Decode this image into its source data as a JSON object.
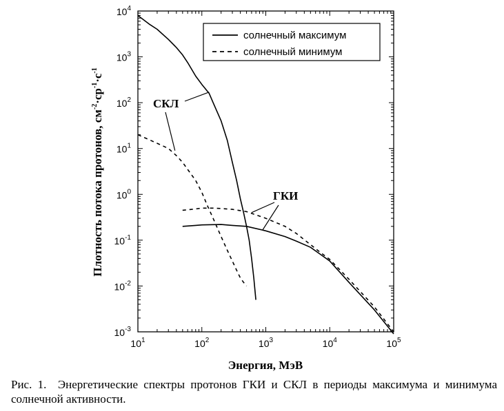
{
  "chart_data": {
    "type": "line",
    "xscale": "log",
    "yscale": "log",
    "xlim": [
      10,
      100000
    ],
    "ylim": [
      0.001,
      10000
    ],
    "xlabel": "Энергия, МэВ",
    "ylabel_main": "Плотность потока протонов, см",
    "ylabel_exp1": "-2",
    "ylabel_mid1": "·ср",
    "ylabel_exp2": "-1",
    "ylabel_mid2": "·с",
    "ylabel_exp3": "-1",
    "x_ticks": [
      {
        "value": 10,
        "base": "10",
        "exp": "1"
      },
      {
        "value": 100,
        "base": "10",
        "exp": "2"
      },
      {
        "value": 1000,
        "base": "10",
        "exp": "3"
      },
      {
        "value": 10000,
        "base": "10",
        "exp": "4"
      },
      {
        "value": 100000,
        "base": "10",
        "exp": "5"
      }
    ],
    "y_ticks": [
      {
        "value": 0.001,
        "base": "10",
        "exp": "-3"
      },
      {
        "value": 0.01,
        "base": "10",
        "exp": "-2"
      },
      {
        "value": 0.1,
        "base": "10",
        "exp": "-1"
      },
      {
        "value": 1,
        "base": "10",
        "exp": "0"
      },
      {
        "value": 10,
        "base": "10",
        "exp": "1"
      },
      {
        "value": 100,
        "base": "10",
        "exp": "2"
      },
      {
        "value": 1000,
        "base": "10",
        "exp": "3"
      },
      {
        "value": 10000,
        "base": "10",
        "exp": "4"
      }
    ],
    "legend_position": "top-right",
    "legend": [
      {
        "label": "солнечный максимум",
        "style": "solid"
      },
      {
        "label": "солнечный минимум",
        "style": "dashed"
      }
    ],
    "series": [
      {
        "group": "СКЛ",
        "legend": "солнечный максимум",
        "style": "solid",
        "x": [
          10,
          15,
          20,
          30,
          40,
          50,
          60,
          80,
          100,
          130,
          150,
          200,
          250,
          300,
          350,
          400,
          450,
          500,
          550,
          600,
          650,
          700
        ],
        "y": [
          8000,
          5200,
          4000,
          2400,
          1600,
          1100,
          750,
          380,
          250,
          160,
          100,
          40,
          15,
          5,
          2,
          0.8,
          0.4,
          0.2,
          0.1,
          0.04,
          0.015,
          0.005
        ]
      },
      {
        "group": "СКЛ",
        "legend": "солнечный минимум",
        "style": "dashed",
        "x": [
          10,
          20,
          30,
          40,
          50,
          60,
          80,
          100,
          120,
          150,
          200,
          250,
          300,
          350,
          400,
          450,
          500
        ],
        "y": [
          20,
          13,
          10,
          7,
          5,
          3.5,
          2,
          1.1,
          0.6,
          0.3,
          0.12,
          0.06,
          0.035,
          0.022,
          0.015,
          0.012,
          0.01
        ]
      },
      {
        "group": "ГКИ",
        "legend": "солнечный максимум",
        "style": "solid",
        "x": [
          50,
          80,
          100,
          200,
          300,
          500,
          1000,
          2000,
          3000,
          5000,
          7000,
          10000,
          20000,
          50000,
          100000
        ],
        "y": [
          0.2,
          0.21,
          0.215,
          0.22,
          0.21,
          0.2,
          0.16,
          0.12,
          0.095,
          0.07,
          0.05,
          0.035,
          0.012,
          0.003,
          0.0009
        ]
      },
      {
        "group": "ГКИ",
        "legend": "солнечный минимум",
        "style": "dashed",
        "x": [
          50,
          80,
          100,
          150,
          200,
          300,
          500,
          1000,
          2000,
          3000,
          5000,
          7000,
          10000,
          20000,
          50000,
          100000
        ],
        "y": [
          0.45,
          0.48,
          0.5,
          0.5,
          0.49,
          0.47,
          0.42,
          0.3,
          0.2,
          0.14,
          0.08,
          0.055,
          0.038,
          0.014,
          0.0035,
          0.001
        ]
      }
    ],
    "annotations": [
      {
        "text": "СКЛ"
      },
      {
        "text": "ГКИ"
      }
    ]
  },
  "caption": {
    "prefix": "Рис. 1.",
    "text": "Энергетические спектры протонов ГКИ и СКЛ в периоды максимума и минимума солнечной активности."
  }
}
